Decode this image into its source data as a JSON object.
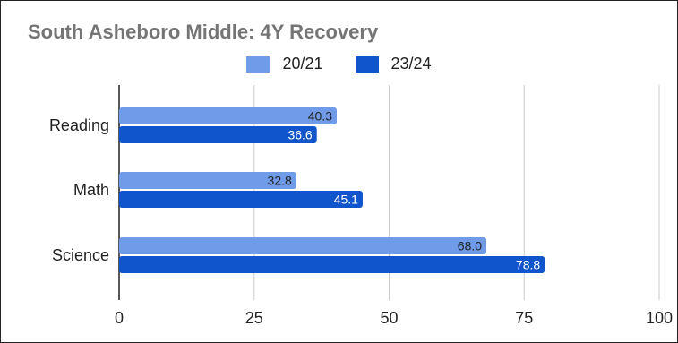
{
  "chart_data": {
    "type": "bar",
    "orientation": "horizontal",
    "title": "South Asheboro Middle: 4Y Recovery",
    "categories": [
      "Reading",
      "Math",
      "Science"
    ],
    "series": [
      {
        "name": "20/21",
        "values": [
          40.3,
          32.8,
          68.0
        ],
        "labels": [
          "40.3",
          "32.8",
          "68.0"
        ],
        "color": "#6f9be8"
      },
      {
        "name": "23/24",
        "values": [
          36.6,
          45.1,
          78.8
        ],
        "labels": [
          "36.6",
          "45.1",
          "78.8"
        ],
        "color": "#1155cc"
      }
    ],
    "xlim": [
      0,
      100
    ],
    "xticks": [
      "0",
      "25",
      "50",
      "75",
      "100"
    ],
    "grid": true,
    "legend_position": "top"
  }
}
